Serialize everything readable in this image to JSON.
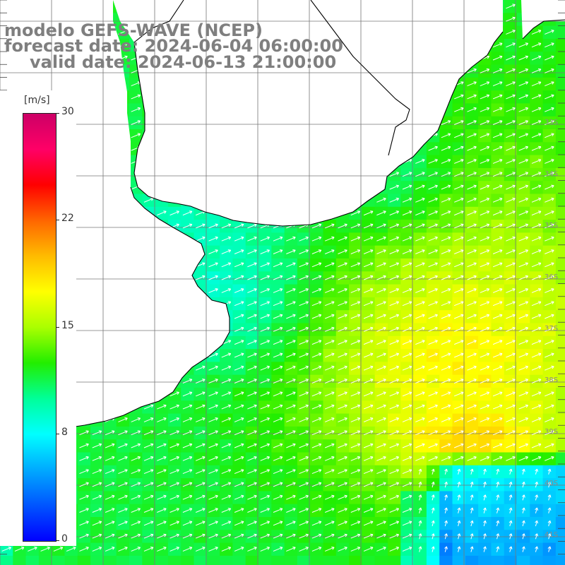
{
  "title": {
    "model": "modelo GEFS-WAVE (NCEP)",
    "forecast": "forecast date: 2024-06-04 06:00:00",
    "valid": "valid date: 2024-06-13 21:00:00"
  },
  "colorbar": {
    "unit": "[m/s]",
    "min": 0,
    "max": 30,
    "ticks": [
      {
        "value": 30,
        "label": "30"
      },
      {
        "value": 22.5,
        "label": "22"
      },
      {
        "value": 15,
        "label": "15"
      },
      {
        "value": 7.5,
        "label": "8"
      },
      {
        "value": 0,
        "label": "0"
      }
    ],
    "colors": [
      "#0000ff",
      "#0055ff",
      "#00aaff",
      "#00ffff",
      "#00ff99",
      "#22ee00",
      "#aaff00",
      "#ffff00",
      "#ffbb00",
      "#ff6600",
      "#ff0000",
      "#ff0066",
      "#cc0066"
    ]
  },
  "map": {
    "lat_range": [
      -41,
      -31
    ],
    "lon_range": [
      -62,
      -51
    ],
    "lat_labels": [
      "33S",
      "34S",
      "35S",
      "36S",
      "37S",
      "38S",
      "39S",
      "40S",
      "41S"
    ],
    "land_color": "#ffffff",
    "grid_color": "#777777",
    "coast_color": "#000000",
    "arrow_color": "#ffffff"
  }
}
